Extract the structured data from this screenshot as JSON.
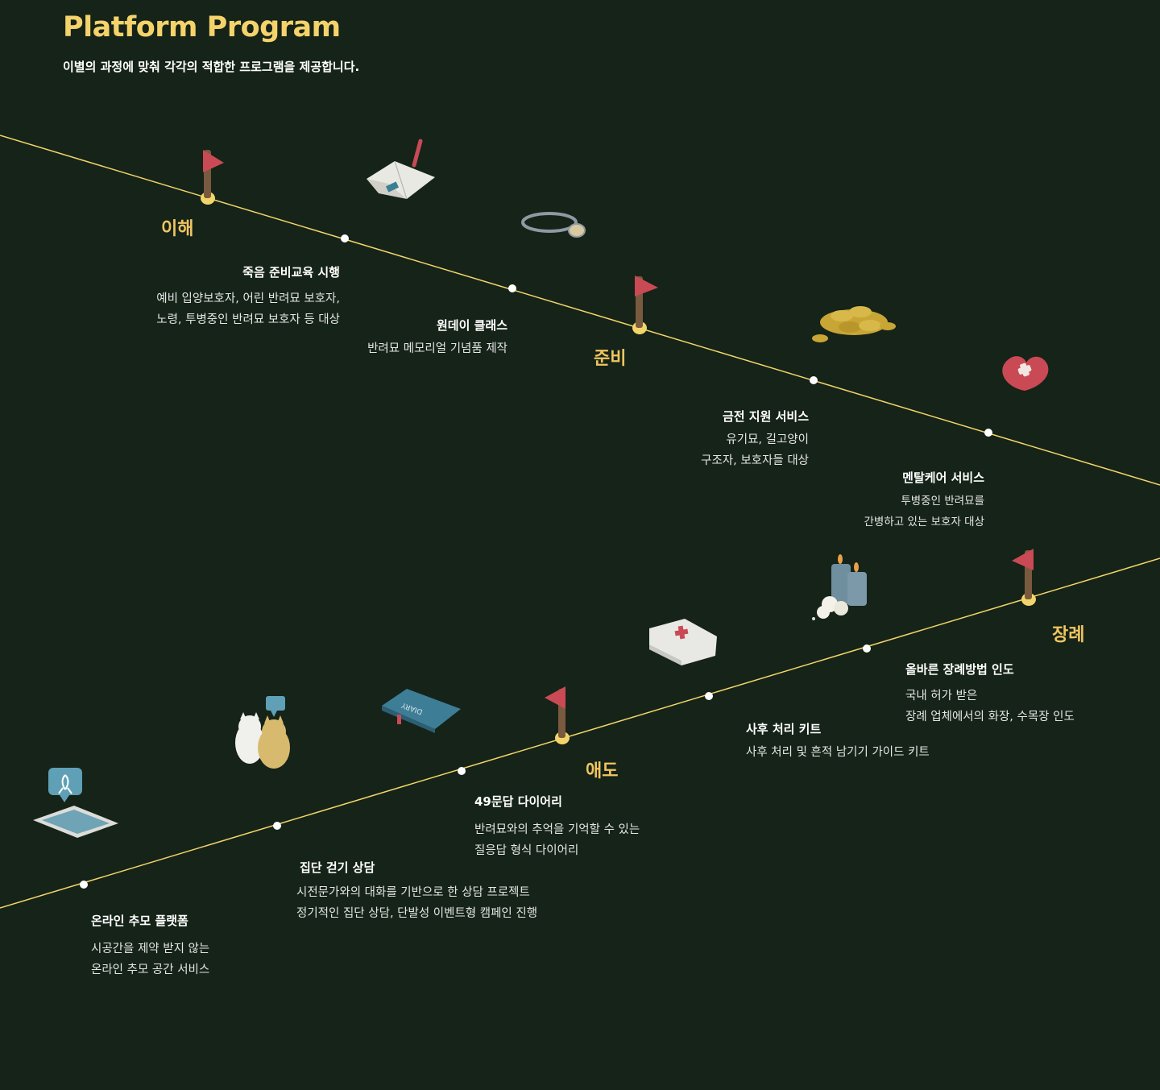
{
  "header": {
    "title": "Platform Program",
    "subtitle": "이별의 과정에 맞춰 각각의 적합한 프로그램을 제공합니다."
  },
  "stages": {
    "understanding": "이해",
    "preparation": "준비",
    "mourning": "애도",
    "funeral": "장례"
  },
  "programs": {
    "death_education": {
      "title": "죽음 준비교육 시행",
      "desc": [
        "예비 입양보호자, 어린 반려묘 보호자,",
        "노령, 투병중인 반려묘 보호자 등 대상"
      ]
    },
    "oneday_class": {
      "title": "원데이 클래스",
      "desc": [
        "반려묘 메모리얼 기념품 제작"
      ]
    },
    "financial_support": {
      "title": "금전 지원 서비스",
      "desc": [
        "유기묘, 길고양이",
        "구조자, 보호자들 대상"
      ]
    },
    "mental_care": {
      "title": "멘탈케어 서비스",
      "desc": [
        "투병중인 반려묘를",
        "간병하고 있는 보호자 대상"
      ]
    },
    "funeral_guide": {
      "title": "올바른 장례방법 인도",
      "desc": [
        "국내 허가 받은",
        "장례 업체에서의 화장, 수목장 인도"
      ]
    },
    "aftercare_kit": {
      "title": "사후 처리 키트",
      "desc": [
        "사후 처리 및 흔적 남기기 가이드 키트"
      ]
    },
    "diary_49": {
      "title": "49문답 다이어리",
      "desc": [
        "반려묘와의 추억을 기억할 수 있는",
        "질응답 형식 다이어리"
      ]
    },
    "group_walk": {
      "title": "집단 걷기 상담",
      "desc": [
        "시전문가와의 대화를 기반으로 한 상담 프로젝트",
        "정기적인 집단 상담, 단발성 이벤트형 캠페인 진행"
      ]
    },
    "online_memorial": {
      "title": "온라인 추모 플랫폼",
      "desc": [
        "시공간을 제약 받지 않는",
        "온라인 추모 공간 서비스"
      ]
    }
  },
  "illustration_text": {
    "diary_cover": "DIARY"
  },
  "colors": {
    "background": "#152318",
    "accent": "#f5d36b",
    "line": "#f2d56a",
    "flag": "#c94a55"
  }
}
